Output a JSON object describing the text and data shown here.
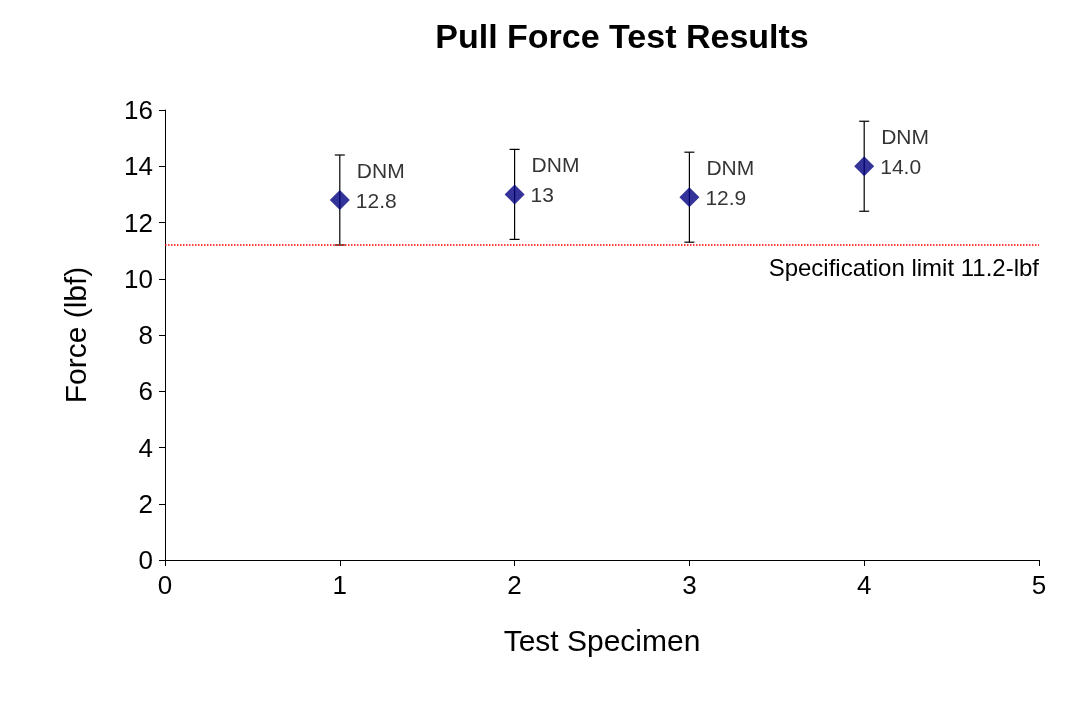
{
  "chart_data": {
    "type": "scatter",
    "title": "Pull Force Test Results",
    "xlabel": "Test Specimen",
    "ylabel": "Force (lbf)",
    "x": [
      1,
      2,
      3,
      4
    ],
    "values": [
      12.8,
      13,
      12.9,
      14.0
    ],
    "errors": [
      1.6,
      1.6,
      1.6,
      1.6
    ],
    "value_labels": [
      "12.8",
      "13",
      "12.9",
      "14.0"
    ],
    "color": "#000080",
    "marker": "diamond",
    "xlim": [
      0,
      5
    ],
    "xticks": [
      0,
      1,
      2,
      3,
      4,
      5
    ],
    "ylim": [
      0,
      16
    ],
    "yticks": [
      0,
      2,
      4,
      6,
      8,
      10,
      12,
      14,
      16
    ],
    "grid": false,
    "ref_lines": [
      {
        "axis": "y",
        "value": 11.2,
        "label": "Specification limit 11.2-lbf",
        "color": "#ff0000",
        "line_style": "dotted"
      }
    ],
    "annotations": [
      {
        "text": "DNM",
        "x": 1,
        "y": 12.8
      },
      {
        "text": "DNM",
        "x": 2,
        "y": 13
      },
      {
        "text": "DNM",
        "x": 3,
        "y": 12.9
      },
      {
        "text": "DNM",
        "x": 4,
        "y": 14.0
      }
    ]
  }
}
